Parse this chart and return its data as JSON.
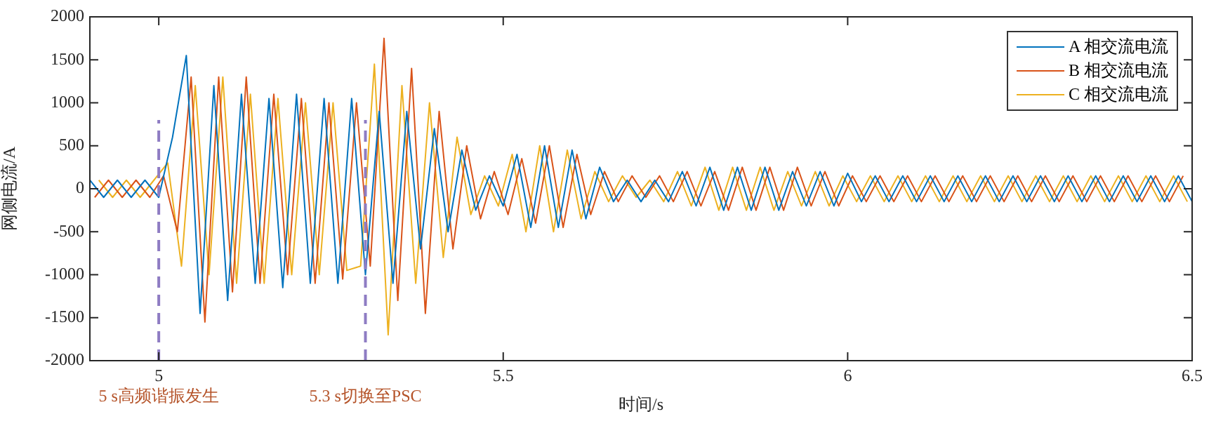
{
  "chart_data": {
    "type": "line",
    "xlabel": "时间/s",
    "ylabel": "网侧电流/A",
    "xlim": [
      4.9,
      6.5
    ],
    "xticks": [
      5,
      5.5,
      6,
      6.5
    ],
    "ylim": [
      -2000,
      2000
    ],
    "yticks": [
      -2000,
      -1500,
      -1000,
      -500,
      0,
      500,
      1000,
      1500,
      2000
    ],
    "grid": false,
    "legend": "top right",
    "marker": "none",
    "line_style": "solid",
    "ref_lines": [
      {
        "axis": "x",
        "value": 5,
        "label": "5 s高频谐振发生",
        "color": "#8e7cc3",
        "line_style": "dashed"
      },
      {
        "axis": "x",
        "value": 5.3,
        "label": "5.3 s切换至PSC",
        "color": "#8e7cc3",
        "line_style": "dashed"
      }
    ],
    "series": [
      {
        "name": "A 相交流电流",
        "color": "#0072bd",
        "x": [
          4.9,
          4.92,
          4.94,
          4.96,
          4.98,
          5.0,
          5.02,
          5.04,
          5.06,
          5.08,
          5.1,
          5.12,
          5.14,
          5.16,
          5.18,
          5.2,
          5.22,
          5.24,
          5.26,
          5.28,
          5.3,
          5.32,
          5.34,
          5.36,
          5.38,
          5.4,
          5.42,
          5.44,
          5.46,
          5.48,
          5.5,
          5.52,
          5.54,
          5.56,
          5.58,
          5.6,
          5.62,
          5.64,
          5.66,
          5.68,
          5.7,
          5.72,
          5.74,
          5.76,
          5.78,
          5.8,
          5.82,
          5.84,
          5.86,
          5.88,
          5.9,
          5.92,
          5.94,
          5.96,
          5.98,
          6.0,
          6.02,
          6.04,
          6.06,
          6.08,
          6.1,
          6.12,
          6.14,
          6.16,
          6.18,
          6.2,
          6.22,
          6.24,
          6.26,
          6.28,
          6.3,
          6.32,
          6.34,
          6.36,
          6.38,
          6.4,
          6.42,
          6.44,
          6.46,
          6.48,
          6.5
        ],
        "values": [
          100,
          -100,
          100,
          -100,
          100,
          -100,
          600,
          1550,
          -1450,
          1200,
          -1300,
          1100,
          -1100,
          1050,
          -1150,
          1100,
          -1100,
          1050,
          -1100,
          1050,
          -1000,
          900,
          -1100,
          900,
          -700,
          700,
          -500,
          450,
          -250,
          150,
          -200,
          400,
          -450,
          500,
          -450,
          450,
          -350,
          250,
          -150,
          100,
          -150,
          100,
          -150,
          200,
          -200,
          250,
          -250,
          250,
          -250,
          250,
          -250,
          200,
          -200,
          200,
          -200,
          180,
          -150,
          150,
          -150,
          150,
          -150,
          150,
          -150,
          150,
          -150,
          150,
          -150,
          150,
          -150,
          150,
          -150,
          150,
          -150,
          150,
          -150,
          150,
          -150,
          150,
          -150,
          150,
          -150
        ]
      },
      {
        "name": "B 相交流电流",
        "color": "#d95319",
        "x": [
          4.907,
          4.927,
          4.947,
          4.967,
          4.987,
          5.007,
          5.027,
          5.047,
          5.067,
          5.087,
          5.107,
          5.127,
          5.147,
          5.167,
          5.187,
          5.207,
          5.227,
          5.247,
          5.267,
          5.287,
          5.307,
          5.327,
          5.347,
          5.367,
          5.387,
          5.407,
          5.427,
          5.447,
          5.467,
          5.487,
          5.507,
          5.527,
          5.547,
          5.567,
          5.587,
          5.607,
          5.627,
          5.647,
          5.667,
          5.687,
          5.707,
          5.727,
          5.747,
          5.767,
          5.787,
          5.807,
          5.827,
          5.847,
          5.867,
          5.887,
          5.907,
          5.927,
          5.947,
          5.967,
          5.987,
          6.007,
          6.027,
          6.047,
          6.067,
          6.087,
          6.107,
          6.127,
          6.147,
          6.167,
          6.187,
          6.207,
          6.227,
          6.247,
          6.267,
          6.287,
          6.307,
          6.327,
          6.347,
          6.367,
          6.387,
          6.407,
          6.427,
          6.447,
          6.467,
          6.487
        ],
        "values": [
          -100,
          100,
          -100,
          100,
          -100,
          150,
          -500,
          1300,
          -1550,
          1300,
          -1200,
          1300,
          -1100,
          1100,
          -1000,
          1050,
          -1100,
          1000,
          -1050,
          1000,
          -900,
          1750,
          -1300,
          1400,
          -1450,
          900,
          -700,
          500,
          -350,
          200,
          -300,
          350,
          -400,
          500,
          -450,
          400,
          -300,
          200,
          -150,
          150,
          -100,
          150,
          -150,
          200,
          -200,
          200,
          -250,
          250,
          -250,
          250,
          -250,
          250,
          -200,
          200,
          -200,
          150,
          -150,
          150,
          -150,
          150,
          -150,
          150,
          -150,
          150,
          -150,
          150,
          -150,
          150,
          -150,
          150,
          -150,
          150,
          -150,
          150,
          -150,
          150,
          -150,
          150,
          -150,
          150
        ]
      },
      {
        "name": "C 相交流电流",
        "color": "#edb120",
        "x": [
          4.913,
          4.933,
          4.953,
          4.973,
          4.993,
          5.013,
          5.033,
          5.053,
          5.073,
          5.093,
          5.113,
          5.133,
          5.153,
          5.173,
          5.193,
          5.213,
          5.233,
          5.253,
          5.273,
          5.293,
          5.313,
          5.333,
          5.353,
          5.373,
          5.393,
          5.413,
          5.433,
          5.453,
          5.473,
          5.493,
          5.513,
          5.533,
          5.553,
          5.573,
          5.593,
          5.613,
          5.633,
          5.653,
          5.673,
          5.693,
          5.713,
          5.733,
          5.753,
          5.773,
          5.793,
          5.813,
          5.833,
          5.853,
          5.873,
          5.893,
          5.913,
          5.933,
          5.953,
          5.973,
          5.993,
          6.013,
          6.033,
          6.053,
          6.073,
          6.093,
          6.113,
          6.133,
          6.153,
          6.173,
          6.193,
          6.213,
          6.233,
          6.253,
          6.273,
          6.293,
          6.313,
          6.333,
          6.353,
          6.373,
          6.393,
          6.413,
          6.433,
          6.453,
          6.473,
          6.493
        ],
        "values": [
          100,
          -100,
          100,
          -100,
          100,
          300,
          -900,
          1200,
          -1000,
          1300,
          -1100,
          1100,
          -1100,
          1050,
          -1000,
          1000,
          -1000,
          1000,
          -950,
          -900,
          1450,
          -1700,
          1200,
          -1100,
          1000,
          -800,
          600,
          -300,
          150,
          -200,
          400,
          -500,
          500,
          -500,
          450,
          -350,
          200,
          -150,
          150,
          -100,
          100,
          -150,
          200,
          -200,
          250,
          -250,
          250,
          -250,
          250,
          -250,
          200,
          -200,
          200,
          -200,
          150,
          -150,
          150,
          -150,
          150,
          -150,
          150,
          -150,
          150,
          -150,
          150,
          -150,
          150,
          -150,
          150,
          -150,
          150,
          -150,
          150,
          -150,
          150,
          -150,
          150,
          -150,
          150,
          -150
        ]
      }
    ]
  }
}
